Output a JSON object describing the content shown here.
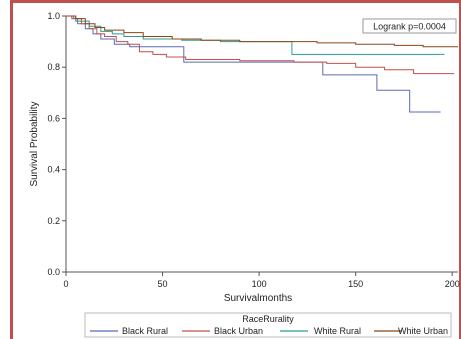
{
  "chart_data": {
    "type": "line",
    "xlabel": "Survivalmonths",
    "ylabel": "Survival Probability",
    "xlim": [
      0,
      203
    ],
    "ylim": [
      0,
      1.0
    ],
    "x_ticks": [
      "0",
      "50",
      "100",
      "150",
      "200"
    ],
    "y_ticks": [
      "0.0",
      "0.2",
      "0.4",
      "0.6",
      "0.8",
      "1.0"
    ],
    "annotation": "Logrank p=0.0004",
    "legend": {
      "title": "RaceRurality",
      "position": "bottom"
    },
    "series": [
      {
        "name": "Black Rural",
        "color": "#5b6ab5",
        "points": [
          [
            0,
            1.0
          ],
          [
            3,
            0.99
          ],
          [
            6,
            0.97
          ],
          [
            10,
            0.95
          ],
          [
            14,
            0.93
          ],
          [
            18,
            0.91
          ],
          [
            25,
            0.89
          ],
          [
            33,
            0.88
          ],
          [
            45,
            0.88
          ],
          [
            60,
            0.88
          ],
          [
            61,
            0.82
          ],
          [
            90,
            0.82
          ],
          [
            110,
            0.82
          ],
          [
            120,
            0.82
          ],
          [
            132,
            0.82
          ],
          [
            133,
            0.77
          ],
          [
            160,
            0.77
          ],
          [
            161,
            0.71
          ],
          [
            175,
            0.71
          ],
          [
            178,
            0.625
          ],
          [
            194,
            0.625
          ]
        ]
      },
      {
        "name": "Black Urban",
        "color": "#c0504d",
        "points": [
          [
            0,
            1.0
          ],
          [
            4,
            0.99
          ],
          [
            8,
            0.97
          ],
          [
            12,
            0.95
          ],
          [
            16,
            0.93
          ],
          [
            20,
            0.92
          ],
          [
            26,
            0.9
          ],
          [
            32,
            0.89
          ],
          [
            38,
            0.86
          ],
          [
            45,
            0.85
          ],
          [
            52,
            0.84
          ],
          [
            62,
            0.83
          ],
          [
            90,
            0.825
          ],
          [
            118,
            0.82
          ],
          [
            135,
            0.815
          ],
          [
            150,
            0.8
          ],
          [
            165,
            0.79
          ],
          [
            180,
            0.775
          ],
          [
            201,
            0.775
          ]
        ]
      },
      {
        "name": "White Rural",
        "color": "#2a9d8f",
        "points": [
          [
            0,
            1.0
          ],
          [
            5,
            0.98
          ],
          [
            12,
            0.96
          ],
          [
            18,
            0.94
          ],
          [
            24,
            0.93
          ],
          [
            30,
            0.92
          ],
          [
            40,
            0.91
          ],
          [
            60,
            0.905
          ],
          [
            80,
            0.9
          ],
          [
            100,
            0.9
          ],
          [
            116,
            0.9
          ],
          [
            117,
            0.85
          ],
          [
            150,
            0.85
          ],
          [
            170,
            0.85
          ],
          [
            196,
            0.85
          ]
        ]
      },
      {
        "name": "White Urban",
        "color": "#8b4513",
        "points": [
          [
            0,
            1.0
          ],
          [
            5,
            0.99
          ],
          [
            10,
            0.97
          ],
          [
            15,
            0.955
          ],
          [
            20,
            0.945
          ],
          [
            30,
            0.935
          ],
          [
            40,
            0.92
          ],
          [
            55,
            0.91
          ],
          [
            70,
            0.905
          ],
          [
            90,
            0.9
          ],
          [
            110,
            0.9
          ],
          [
            130,
            0.895
          ],
          [
            150,
            0.89
          ],
          [
            170,
            0.885
          ],
          [
            185,
            0.88
          ],
          [
            203,
            0.88
          ]
        ]
      }
    ]
  }
}
